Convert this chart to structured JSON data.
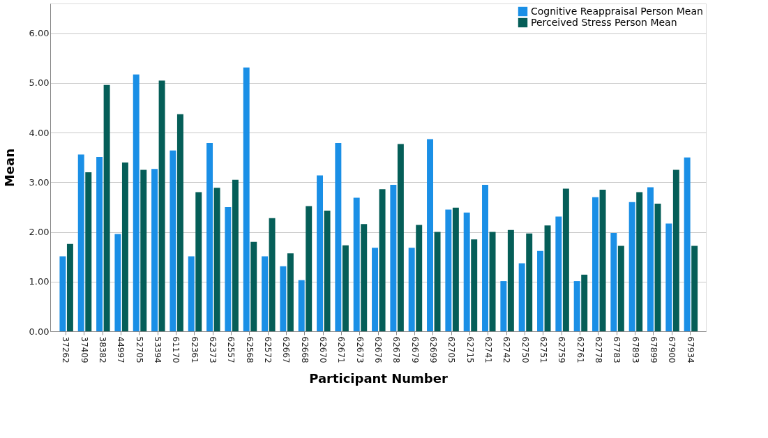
{
  "chart_data": {
    "type": "bar",
    "xlabel": "Participant Number",
    "ylabel": "Mean",
    "categories": [
      "37262",
      "37409",
      "38382",
      "44997",
      "52705",
      "53394",
      "61170",
      "62361",
      "62373",
      "62557",
      "62568",
      "62572",
      "62667",
      "62668",
      "62670",
      "62671",
      "62673",
      "62676",
      "62678",
      "62679",
      "62699",
      "62705",
      "62715",
      "62741",
      "62742",
      "62750",
      "62751",
      "62759",
      "62761",
      "62778",
      "67783",
      "67893",
      "67899",
      "67900",
      "67934"
    ],
    "series": [
      {
        "name": "Cognitive Reappraisal Person Mean",
        "color": "#1a8fe6",
        "values": [
          1.51,
          3.56,
          3.51,
          1.96,
          5.17,
          3.27,
          3.64,
          1.51,
          3.79,
          2.5,
          5.31,
          1.51,
          1.31,
          1.03,
          3.14,
          3.79,
          2.69,
          1.68,
          2.95,
          1.68,
          3.87,
          2.45,
          2.39,
          2.95,
          1.01,
          1.37,
          1.62,
          2.31,
          1.01,
          2.7,
          1.98,
          2.6,
          2.9,
          2.17,
          3.5
        ]
      },
      {
        "name": "Perceived Stress Person Mean",
        "color": "#055e58",
        "values": [
          1.76,
          3.2,
          4.96,
          3.4,
          3.25,
          5.05,
          4.37,
          2.8,
          2.89,
          3.05,
          1.8,
          2.28,
          1.57,
          2.52,
          2.43,
          1.73,
          2.16,
          2.86,
          3.77,
          2.14,
          2.0,
          2.49,
          1.85,
          2.0,
          2.04,
          1.97,
          2.13,
          2.87,
          1.14,
          2.85,
          1.72,
          2.8,
          2.57,
          3.25,
          1.72
        ]
      }
    ],
    "ylim": [
      0,
      6.6
    ],
    "yticks": [
      {
        "value": 0,
        "label": "0.00"
      },
      {
        "value": 1,
        "label": "1.00"
      },
      {
        "value": 2,
        "label": "2.00"
      },
      {
        "value": 3,
        "label": "3.00"
      },
      {
        "value": 4,
        "label": "4.00"
      },
      {
        "value": 5,
        "label": "5.00"
      },
      {
        "value": 6,
        "label": "6.00"
      }
    ],
    "grid": "y",
    "legend": "top right"
  }
}
